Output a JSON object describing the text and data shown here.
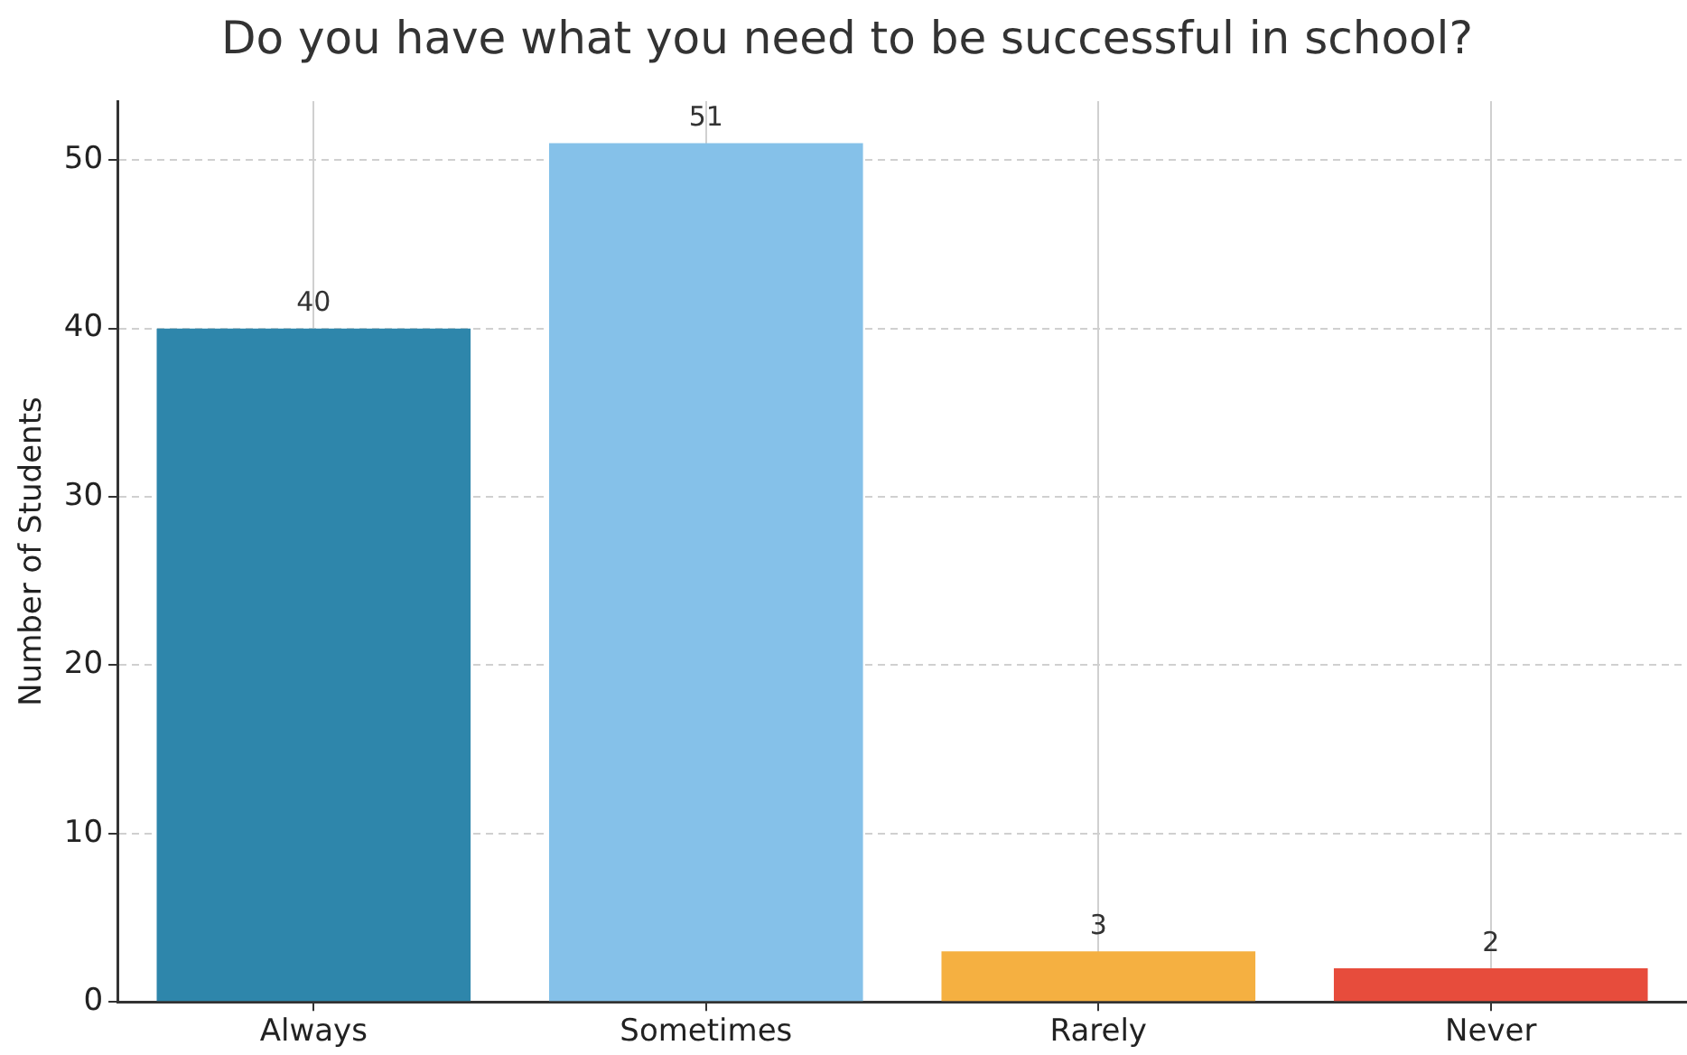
{
  "chart_data": {
    "type": "bar",
    "title": "Do you have what you need to be successful in school?",
    "ylabel": "Number of Students",
    "categories": [
      "Always",
      "Sometimes",
      "Rarely",
      "Never"
    ],
    "values": [
      40,
      51,
      3,
      2
    ],
    "colors": [
      "#2e86ab",
      "#85c1e9",
      "#f5b041",
      "#e74c3c"
    ],
    "ylim": [
      0,
      53.5
    ],
    "yticks": [
      0,
      10,
      20,
      30,
      40,
      50
    ],
    "grid": true,
    "data_labels": true
  }
}
